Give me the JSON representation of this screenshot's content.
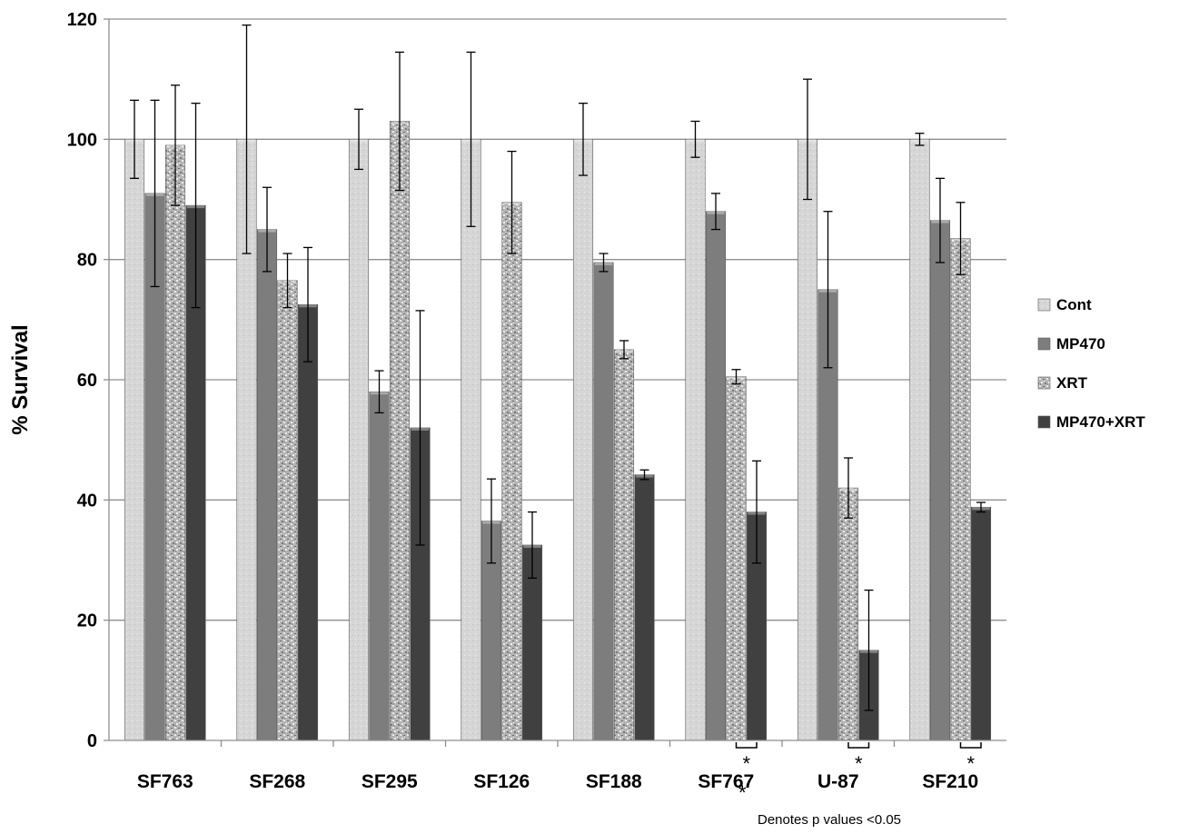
{
  "chart_data": {
    "type": "bar",
    "title": "",
    "xlabel": "",
    "ylabel": "% Survival",
    "ylim": [
      0,
      120
    ],
    "yticks": [
      0,
      20,
      40,
      60,
      80,
      100,
      120
    ],
    "grid": true,
    "legend_position": "right",
    "categories": [
      "SF763",
      "SF268",
      "SF295",
      "SF126",
      "SF188",
      "SF767",
      "U-87",
      "SF210"
    ],
    "series": [
      {
        "name": "Cont",
        "color": "#cfcfcf",
        "pattern": "light",
        "values": [
          100,
          100,
          100,
          100,
          100,
          100,
          100,
          100
        ],
        "errors": [
          6.5,
          19,
          5,
          14.5,
          6,
          3,
          10,
          1
        ]
      },
      {
        "name": "MP470",
        "color": "#7d7d7d",
        "pattern": "solid",
        "values": [
          91,
          85,
          58,
          36.5,
          79.5,
          88,
          75,
          86.5
        ],
        "errors": [
          15.5,
          7,
          3.5,
          7,
          1.5,
          3,
          13,
          7
        ]
      },
      {
        "name": "XRT",
        "color": "#a9a9a9",
        "pattern": "speckled",
        "values": [
          99,
          76.5,
          103,
          89.5,
          65,
          60.5,
          42,
          83.5
        ],
        "errors": [
          10,
          4.5,
          11.5,
          8.5,
          1.5,
          1.2,
          5,
          6
        ]
      },
      {
        "name": "MP470+XRT",
        "color": "#404040",
        "pattern": "solid",
        "values": [
          89,
          72.5,
          52,
          32.5,
          44.2,
          38,
          15,
          38.8
        ],
        "errors": [
          17,
          9.5,
          19.5,
          5.5,
          0.8,
          8.5,
          10,
          0.8
        ]
      }
    ],
    "significant_categories": [
      "SF767",
      "U-87",
      "SF210"
    ],
    "significance_marker": "*",
    "annotation": {
      "marker": "*",
      "text": "Denotes p values <0.05"
    }
  }
}
